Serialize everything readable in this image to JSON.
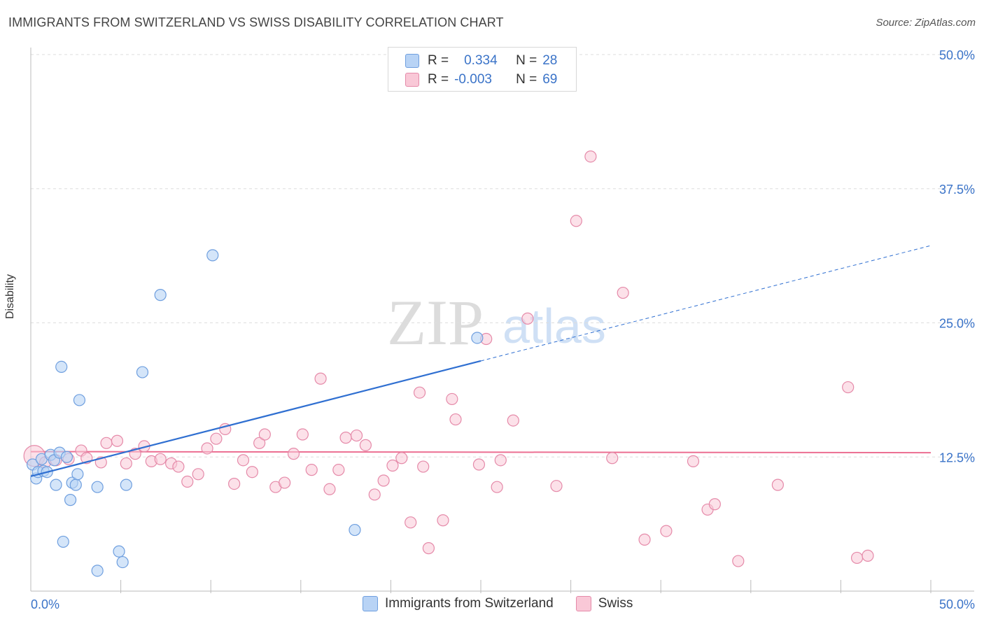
{
  "title": "IMMIGRANTS FROM SWITZERLAND VS SWISS DISABILITY CORRELATION CHART",
  "source": "Source: ZipAtlas.com",
  "watermark": {
    "zip": "ZIP",
    "atlas": "atlas"
  },
  "legend_top": {
    "rows": [
      {
        "r_label": "R =",
        "r_value": "0.334",
        "n_label": "N =",
        "n_value": "28"
      },
      {
        "r_label": "R =",
        "r_value": "-0.003",
        "n_label": "N =",
        "n_value": "69"
      }
    ]
  },
  "legend_bottom": {
    "items": [
      "Immigrants from Switzerland",
      "Swiss"
    ]
  },
  "colors": {
    "blue_fill": "#b8d3f5",
    "blue_stroke": "#6f9fdf",
    "blue_line": "#2f6fd1",
    "pink_fill": "#f9c8d7",
    "pink_stroke": "#e58aa9",
    "pink_line": "#ec6f92",
    "axis_label": "#3a73c8",
    "grid": "#dddddd"
  },
  "chart_data": {
    "type": "scatter",
    "title": "IMMIGRANTS FROM SWITZERLAND VS SWISS DISABILITY CORRELATION CHART",
    "xlabel": "",
    "ylabel": "Disability",
    "xlim": [
      0,
      50
    ],
    "ylim": [
      0,
      50
    ],
    "x_tick_labels": [
      "0.0%",
      "50.0%"
    ],
    "y_ticks": [
      12.5,
      25.0,
      37.5,
      50.0
    ],
    "y_tick_labels": [
      "12.5%",
      "25.0%",
      "37.5%",
      "50.0%"
    ],
    "series": [
      {
        "name": "Immigrants from Switzerland",
        "R": 0.334,
        "N": 28,
        "trend": {
          "x0": 0,
          "y0": 10.7,
          "x1": 50,
          "y1": 32.2,
          "solid_until_x": 25
        },
        "points": [
          [
            0.1,
            11.8
          ],
          [
            0.3,
            10.5
          ],
          [
            0.4,
            11.1
          ],
          [
            0.6,
            12.3
          ],
          [
            0.7,
            11.2
          ],
          [
            0.9,
            11.1
          ],
          [
            1.1,
            12.7
          ],
          [
            1.3,
            12.2
          ],
          [
            1.4,
            9.9
          ],
          [
            1.6,
            12.9
          ],
          [
            1.7,
            20.9
          ],
          [
            1.8,
            4.6
          ],
          [
            2.0,
            12.5
          ],
          [
            2.2,
            8.5
          ],
          [
            2.3,
            10.1
          ],
          [
            2.5,
            9.9
          ],
          [
            2.6,
            10.9
          ],
          [
            2.7,
            17.8
          ],
          [
            3.7,
            1.9
          ],
          [
            3.7,
            9.7
          ],
          [
            4.9,
            3.7
          ],
          [
            5.1,
            2.7
          ],
          [
            5.3,
            9.9
          ],
          [
            6.2,
            20.4
          ],
          [
            7.2,
            27.6
          ],
          [
            10.1,
            31.3
          ],
          [
            18.0,
            5.7
          ],
          [
            24.8,
            23.6
          ]
        ]
      },
      {
        "name": "Swiss",
        "R": -0.003,
        "N": 69,
        "trend": {
          "x0": 0,
          "y0": 13.0,
          "x1": 50,
          "y1": 12.9
        },
        "points": [
          [
            0.2,
            12.6
          ],
          [
            0.8,
            12.0
          ],
          [
            1.4,
            12.2
          ],
          [
            2.1,
            12.3
          ],
          [
            2.8,
            13.1
          ],
          [
            3.1,
            12.4
          ],
          [
            3.9,
            12.0
          ],
          [
            4.2,
            13.8
          ],
          [
            4.8,
            14.0
          ],
          [
            5.3,
            11.9
          ],
          [
            5.8,
            12.8
          ],
          [
            6.3,
            13.5
          ],
          [
            6.7,
            12.1
          ],
          [
            7.2,
            12.3
          ],
          [
            7.8,
            11.9
          ],
          [
            8.2,
            11.6
          ],
          [
            8.7,
            10.2
          ],
          [
            9.3,
            10.9
          ],
          [
            9.8,
            13.3
          ],
          [
            10.3,
            14.2
          ],
          [
            10.8,
            15.1
          ],
          [
            11.3,
            10.0
          ],
          [
            11.8,
            12.2
          ],
          [
            12.3,
            11.1
          ],
          [
            12.7,
            13.8
          ],
          [
            13.0,
            14.6
          ],
          [
            13.6,
            9.7
          ],
          [
            14.1,
            10.1
          ],
          [
            14.6,
            12.8
          ],
          [
            15.1,
            14.6
          ],
          [
            15.6,
            11.3
          ],
          [
            16.1,
            19.8
          ],
          [
            16.6,
            9.5
          ],
          [
            17.1,
            11.3
          ],
          [
            17.5,
            14.3
          ],
          [
            18.1,
            14.5
          ],
          [
            18.6,
            13.6
          ],
          [
            19.1,
            9.0
          ],
          [
            19.6,
            10.3
          ],
          [
            20.1,
            11.7
          ],
          [
            20.6,
            12.4
          ],
          [
            21.1,
            6.4
          ],
          [
            21.6,
            18.5
          ],
          [
            21.8,
            11.6
          ],
          [
            22.1,
            4.0
          ],
          [
            22.9,
            6.6
          ],
          [
            23.4,
            17.9
          ],
          [
            23.6,
            16.0
          ],
          [
            24.9,
            11.8
          ],
          [
            25.3,
            23.5
          ],
          [
            25.9,
            9.7
          ],
          [
            26.1,
            12.2
          ],
          [
            26.8,
            15.9
          ],
          [
            27.6,
            25.4
          ],
          [
            29.2,
            9.8
          ],
          [
            30.3,
            34.5
          ],
          [
            31.1,
            40.5
          ],
          [
            32.3,
            12.4
          ],
          [
            32.9,
            27.8
          ],
          [
            34.1,
            4.8
          ],
          [
            35.3,
            5.6
          ],
          [
            36.8,
            12.1
          ],
          [
            37.6,
            7.6
          ],
          [
            38.0,
            8.1
          ],
          [
            39.3,
            2.8
          ],
          [
            41.5,
            9.9
          ],
          [
            45.4,
            19.0
          ],
          [
            45.9,
            3.1
          ],
          [
            46.5,
            3.3
          ]
        ]
      }
    ]
  }
}
